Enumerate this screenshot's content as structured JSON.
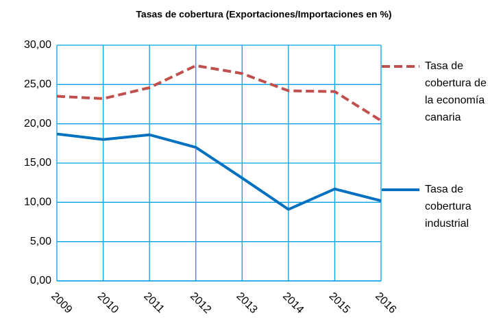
{
  "chart_data": {
    "type": "line",
    "title": "Tasas de cobertura (Exportaciones/Importaciones  en %)",
    "categories": [
      "2009",
      "2010",
      "2011",
      "2012",
      "2013",
      "2014",
      "2015",
      "2016"
    ],
    "series": [
      {
        "name": "Tasa de cobertura de la economía canaria",
        "color": "#c0504d",
        "dashed": true,
        "values": [
          23.5,
          23.2,
          24.6,
          27.4,
          26.4,
          24.2,
          24.1,
          20.4
        ]
      },
      {
        "name": "Tasa de cobertura industrial",
        "color": "#0070c0",
        "dashed": false,
        "values": [
          18.7,
          18.0,
          18.6,
          17.0,
          13.1,
          9.1,
          11.7,
          10.2
        ]
      }
    ],
    "ylim": [
      0,
      30
    ],
    "yticks": [
      {
        "value": 0,
        "label": "0,00"
      },
      {
        "value": 5,
        "label": "5,00"
      },
      {
        "value": 10,
        "label": "10,00"
      },
      {
        "value": 15,
        "label": "15,00"
      },
      {
        "value": 20,
        "label": "20,00"
      },
      {
        "value": 25,
        "label": "25,00"
      },
      {
        "value": 30,
        "label": "30,00"
      }
    ],
    "grid": true,
    "legend": "right"
  }
}
